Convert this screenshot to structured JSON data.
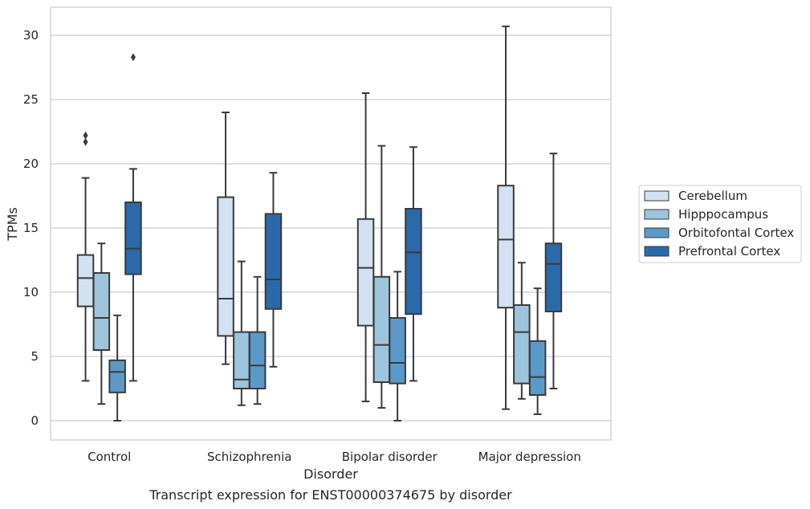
{
  "chart_data": {
    "type": "box",
    "caption": "Transcript expression for ENST00000374675 by disorder",
    "xlabel": "Disorder",
    "ylabel": "TPMs",
    "ylim": [
      -1.5,
      32.2
    ],
    "yticks": [
      0,
      5,
      10,
      15,
      20,
      25,
      30
    ],
    "grid": "horizontal",
    "legend_position": "right",
    "categories": [
      "Control",
      "Schizophrenia",
      "Bipolar disorder",
      "Major depression"
    ],
    "series": [
      {
        "name": "Cerebellum",
        "color": "#d3e2f2",
        "boxes": [
          {
            "whislo": 3.1,
            "q1": 8.9,
            "med": 11.1,
            "q3": 12.9,
            "whishi": 18.9,
            "fliers": [
              21.7,
              22.2
            ]
          },
          {
            "whislo": 4.4,
            "q1": 6.6,
            "med": 9.5,
            "q3": 17.4,
            "whishi": 24.0,
            "fliers": []
          },
          {
            "whislo": 1.5,
            "q1": 7.4,
            "med": 11.9,
            "q3": 15.7,
            "whishi": 25.5,
            "fliers": []
          },
          {
            "whislo": 0.9,
            "q1": 8.8,
            "med": 14.1,
            "q3": 18.3,
            "whishi": 30.7,
            "fliers": []
          }
        ]
      },
      {
        "name": "Hipppocampus",
        "color": "#9dc4dd",
        "boxes": [
          {
            "whislo": 1.3,
            "q1": 5.5,
            "med": 8.0,
            "q3": 11.5,
            "whishi": 13.8,
            "fliers": []
          },
          {
            "whislo": 1.2,
            "q1": 2.5,
            "med": 3.2,
            "q3": 6.9,
            "whishi": 12.4,
            "fliers": []
          },
          {
            "whislo": 1.0,
            "q1": 3.0,
            "med": 5.9,
            "q3": 11.2,
            "whishi": 21.4,
            "fliers": []
          },
          {
            "whislo": 1.7,
            "q1": 2.9,
            "med": 6.9,
            "q3": 9.0,
            "whishi": 12.3,
            "fliers": []
          }
        ]
      },
      {
        "name": "Orbitofontal Cortex",
        "color": "#5b9ac8",
        "boxes": [
          {
            "whislo": 0.0,
            "q1": 2.2,
            "med": 3.8,
            "q3": 4.7,
            "whishi": 8.2,
            "fliers": []
          },
          {
            "whislo": 1.3,
            "q1": 2.5,
            "med": 4.3,
            "q3": 6.9,
            "whishi": 11.2,
            "fliers": []
          },
          {
            "whislo": 0.0,
            "q1": 2.9,
            "med": 4.5,
            "q3": 8.0,
            "whishi": 11.6,
            "fliers": []
          },
          {
            "whislo": 0.5,
            "q1": 2.0,
            "med": 3.4,
            "q3": 6.2,
            "whishi": 10.3,
            "fliers": []
          }
        ]
      },
      {
        "name": "Prefrontal Cortex",
        "color": "#2a6aaa",
        "boxes": [
          {
            "whislo": 3.1,
            "q1": 11.4,
            "med": 13.4,
            "q3": 17.0,
            "whishi": 19.6,
            "fliers": [
              28.3
            ]
          },
          {
            "whislo": 4.2,
            "q1": 8.7,
            "med": 11.0,
            "q3": 16.1,
            "whishi": 19.3,
            "fliers": []
          },
          {
            "whislo": 3.1,
            "q1": 8.3,
            "med": 13.1,
            "q3": 16.5,
            "whishi": 21.3,
            "fliers": []
          },
          {
            "whislo": 2.5,
            "q1": 8.5,
            "med": 12.2,
            "q3": 13.8,
            "whishi": 20.8,
            "fliers": []
          }
        ]
      }
    ]
  }
}
